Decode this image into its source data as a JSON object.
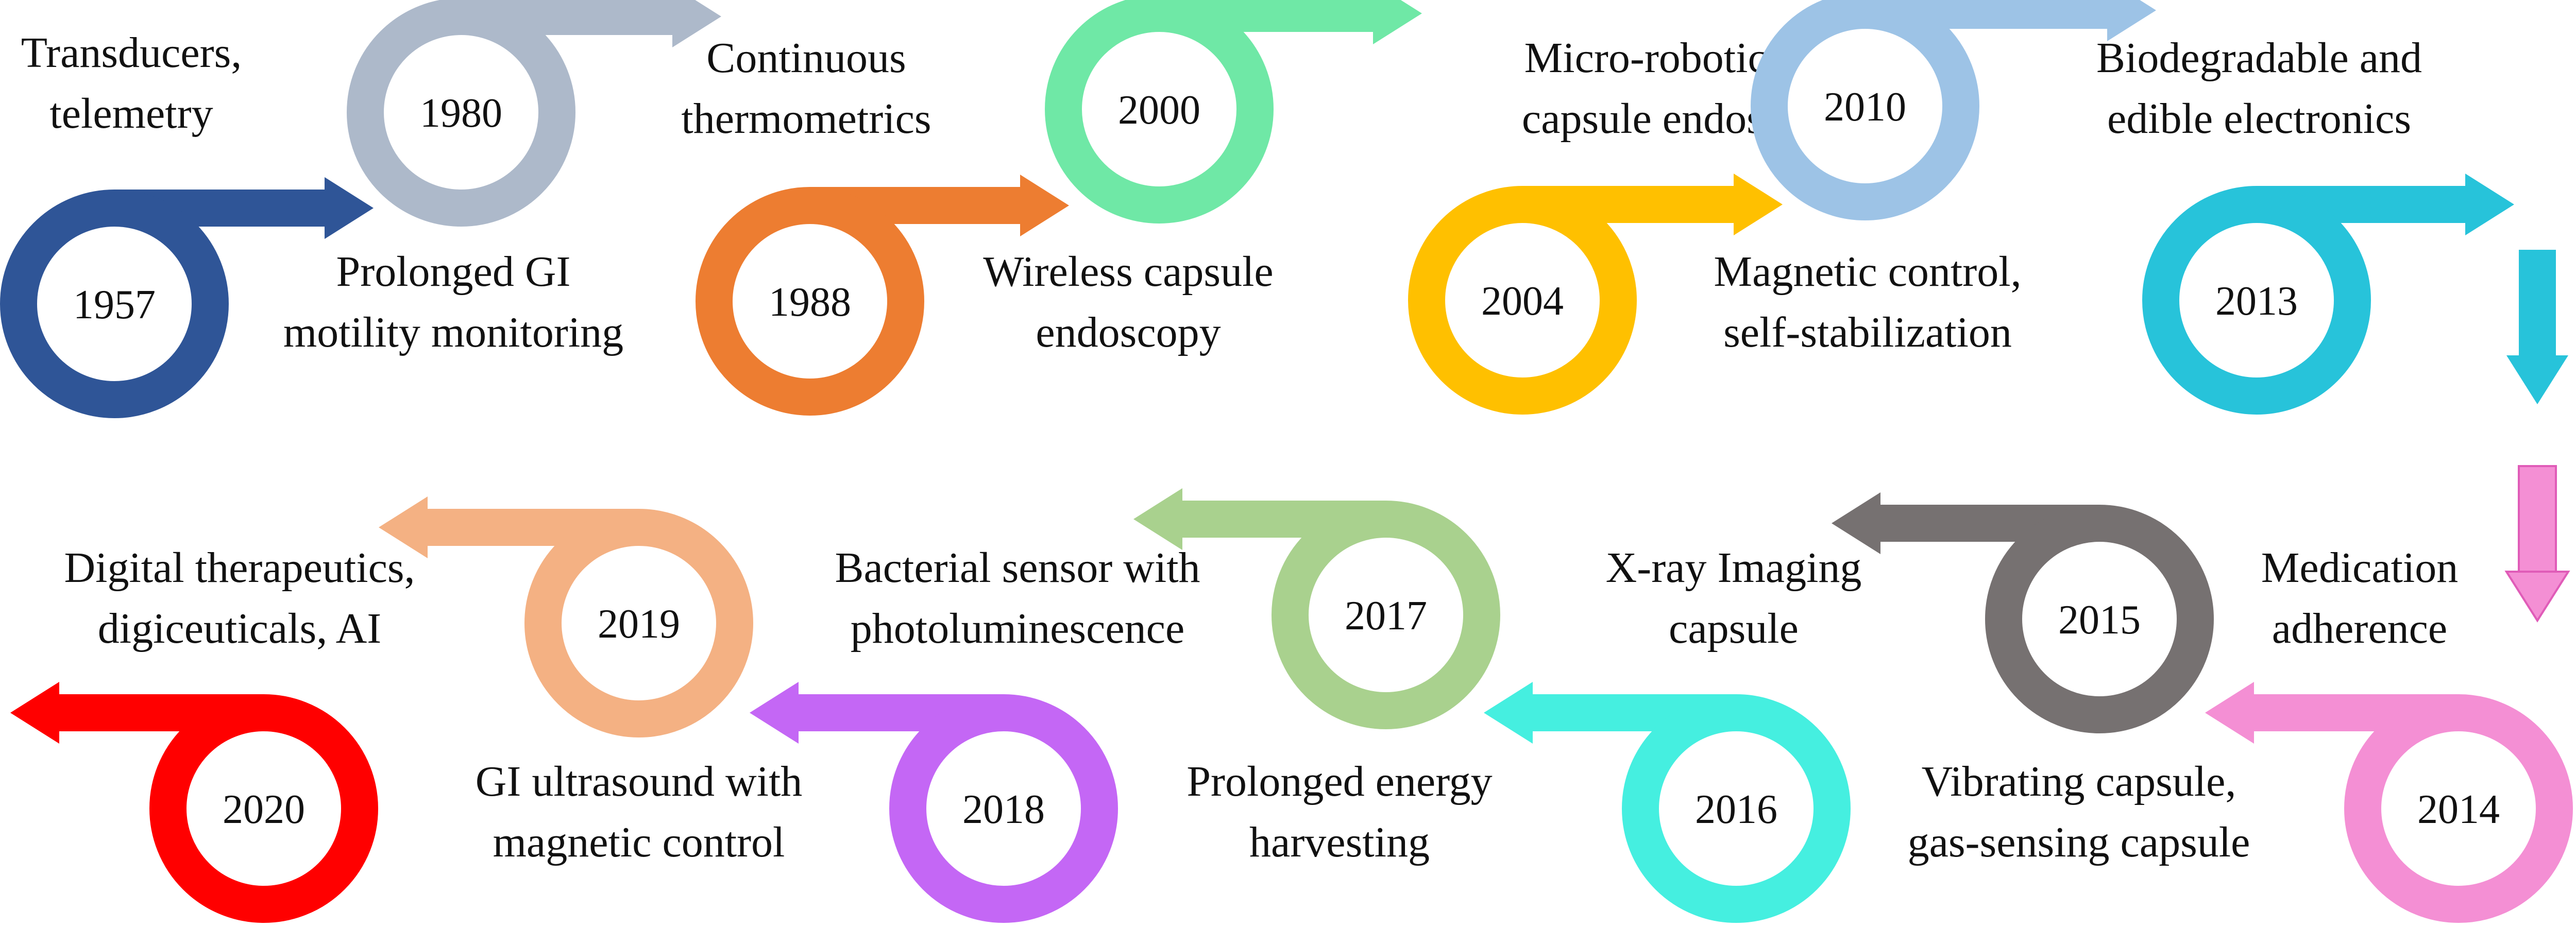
{
  "milestones": [
    {
      "year": "1957",
      "label": [
        "Transducers,",
        "telemetry"
      ],
      "color": "#2F5597"
    },
    {
      "year": "1980",
      "label": [
        "Prolonged GI",
        "motility monitoring"
      ],
      "color": "#ADB9CA"
    },
    {
      "year": "1988",
      "label": [
        "Continuous",
        "thermometrics"
      ],
      "color": "#ED7D31"
    },
    {
      "year": "2000",
      "label": [
        "Wireless capsule",
        "endoscopy"
      ],
      "color": "#6FE8A6"
    },
    {
      "year": "2004",
      "label": [
        "Micro-robotics for",
        "capsule endoscopy"
      ],
      "color": "#FFC000"
    },
    {
      "year": "2010",
      "label": [
        "Magnetic control,",
        "self-stabilization"
      ],
      "color": "#9DC3E6"
    },
    {
      "year": "2013",
      "label": [
        "Biodegradable and",
        "edible electronics"
      ],
      "color": "#27C3DA"
    },
    {
      "year": "2014",
      "label": [
        "Medication",
        "adherence"
      ],
      "color": "#F48FD4"
    },
    {
      "year": "2015",
      "label": [
        "Vibrating capsule,",
        "gas-sensing capsule"
      ],
      "color": "#767171"
    },
    {
      "year": "2016",
      "label": [
        "X-ray Imaging",
        "capsule"
      ],
      "color": "#45EFE0"
    },
    {
      "year": "2017",
      "label": [
        "Prolonged energy",
        "harvesting"
      ],
      "color": "#A9D18E"
    },
    {
      "year": "2018",
      "label": [
        "Bacterial sensor with",
        "photoluminescence"
      ],
      "color": "#C467F5"
    },
    {
      "year": "2019",
      "label": [
        "GI ultrasound with",
        "magnetic control"
      ],
      "color": "#F4B183"
    },
    {
      "year": "2020",
      "label": [
        "Digital therapeutics,",
        "digiceuticals, AI"
      ],
      "color": "#FF0000"
    }
  ]
}
